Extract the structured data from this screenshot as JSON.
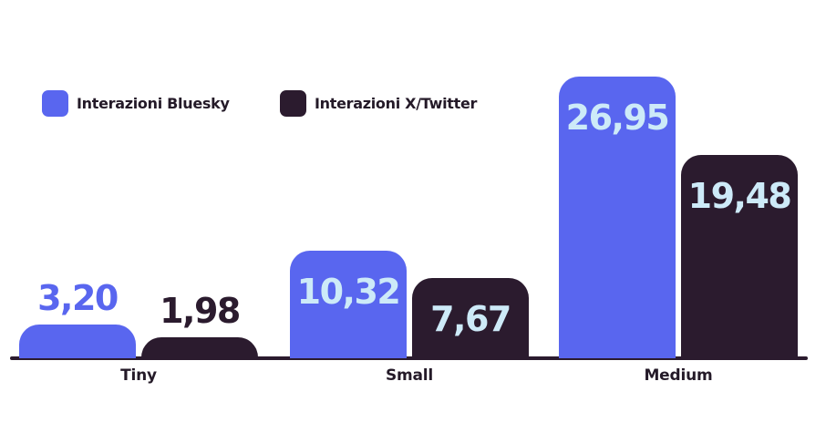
{
  "chart": {
    "background": "#ffffff",
    "axis_color": "#2b1b2e",
    "inside_label_color": "#cdeaf8",
    "category_label_color": "#241a28"
  },
  "legend": {
    "items": [
      {
        "label": "Interazioni Bluesky",
        "color": "#5966ef"
      },
      {
        "label": "Interazioni X/Twitter",
        "color": "#2b1b2e"
      }
    ]
  },
  "chart_data": {
    "type": "bar",
    "title": "",
    "categories": [
      "Tiny",
      "Small",
      "Medium"
    ],
    "series": [
      {
        "name": "Interazioni Bluesky",
        "color": "#5966ef",
        "values": [
          3.2,
          10.32,
          26.95
        ],
        "value_labels": [
          "3,20",
          "10,32",
          "26,95"
        ]
      },
      {
        "name": "Interazioni X/Twitter",
        "color": "#2b1b2e",
        "values": [
          1.98,
          7.67,
          19.48
        ],
        "value_labels": [
          "1,98",
          "7,67",
          "19,48"
        ]
      }
    ],
    "ylim": [
      0,
      30
    ],
    "grid": false,
    "legend_position": "top-left",
    "decimal_separator": ",",
    "value_label_placement": "inside-top, outside for short bars"
  }
}
